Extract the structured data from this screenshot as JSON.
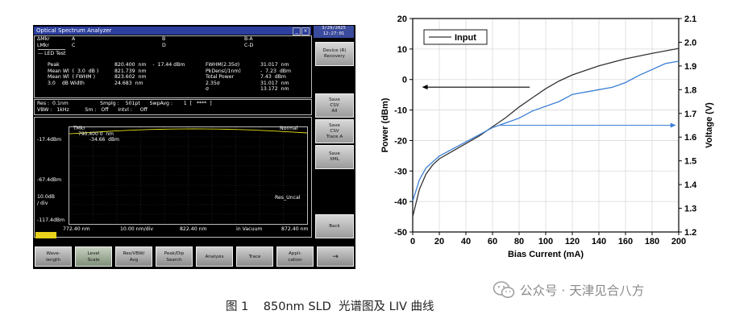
{
  "osa": {
    "title": "Optical Spectrum Analyzer",
    "datetime": "3/29/2025\n12:27:01",
    "marker_rows": [
      {
        "a": "ΔMkr",
        "b": "A",
        "c": "B",
        "d": "B-A"
      },
      {
        "a": "LMkr",
        "b": "C",
        "c": "D",
        "d": "C-D"
      }
    ],
    "led_test_label": "LED Test",
    "left_labels": "Peak\nMean Wl  (  3.0  dB )\nMean Wl  ( FWHM )\n3.0    dB Width",
    "left_values": "820.400  nm    -  17.44 dBm\n821.739  nm\n823.602  nm\n24.683  nm",
    "right_labels": "FWHM(2.35σ)\nPkDens(/1nm)\nTotal Power\n2.35σ\nσ",
    "right_values": "31.017  nm\n-  7.23  dBm\n7.43  dBm\n31.017  nm\n13.172  nm",
    "settings_line1": "Res :  0.1nm                    Smplg :    501pt      SwpAvg :       1  [   ****  ]",
    "settings_line2": "VBW :   1kHz          Sm :   Off      Intvl :     Off",
    "mkr_label": "TMkr",
    "mkr_value1": "790.400 0  nm",
    "mkr_value2": "-34.66  dBm",
    "mode": "Normal",
    "ref_level": "-17.4dBm",
    "level_mid": "-67.4dBm",
    "scale": "10.0dB\n/ div",
    "level_bottom": "-117.4dBm",
    "res_uncal": "Res_Uncal",
    "x_start": "772.40 nm",
    "x_span": "10.00 nm/div",
    "x_center": "822.40 nm",
    "x_medium": "in Vacuum",
    "x_stop": "872.40 nm",
    "softkeys": [
      "Device\n(R) Recovery",
      "Save\nCSV\nAll",
      "Save\nCSV\nTrace A",
      "Save\nXML",
      "Back"
    ],
    "bottom_keys": [
      "Wave-\nlength",
      "Level\nScale",
      "Res/VBW/\nAvg",
      "Peak/Dip\nSearch",
      "Analysis",
      "Trace",
      "Appli-\ncation",
      "→"
    ],
    "trace_color": "#e8e41c",
    "spectrum_dbm": [
      -22.5,
      -21.8,
      -21.0,
      -20.3,
      -19.6,
      -19.0,
      -18.5,
      -18.1,
      -17.8,
      -17.6,
      -17.5,
      -17.4,
      -17.45,
      -17.6,
      -17.8,
      -18.1,
      -18.5,
      -19.0,
      -19.6,
      -20.2,
      -20.9,
      -21.6
    ]
  },
  "chart_data": {
    "type": "line",
    "xlabel": "Bias Current (mA)",
    "ylabel": "Power (dBm)",
    "y2label": "Voltage (V)",
    "xlim": [
      0,
      200
    ],
    "ylim": [
      -50,
      20
    ],
    "y2lim": [
      1.2,
      2.1
    ],
    "x_ticks": [
      0,
      20,
      40,
      60,
      80,
      100,
      120,
      140,
      160,
      180,
      200
    ],
    "y_ticks": [
      20,
      10,
      0,
      -10,
      -20,
      -30,
      -40,
      -50
    ],
    "y2_ticks": [
      2.1,
      2.0,
      1.9,
      1.8,
      1.7,
      1.6,
      1.5,
      1.4,
      1.3,
      1.2
    ],
    "legend": {
      "label": "Input",
      "position": "top-left"
    },
    "series": [
      {
        "axis": "left",
        "color": "#333333",
        "x": [
          0,
          5,
          10,
          15,
          20,
          30,
          40,
          50,
          60,
          70,
          80,
          90,
          100,
          110,
          120,
          140,
          160,
          180,
          200
        ],
        "y": [
          -45,
          -36,
          -31,
          -28,
          -26,
          -23.5,
          -21,
          -18.5,
          -15.5,
          -12.5,
          -9,
          -6,
          -3,
          -0.5,
          1.5,
          4.5,
          6.8,
          8.6,
          10.2
        ]
      },
      {
        "axis": "right",
        "color": "#3a7fd5",
        "x": [
          0,
          5,
          10,
          20,
          30,
          40,
          50,
          60,
          65,
          80,
          90,
          110,
          120,
          140,
          150,
          160,
          170,
          190,
          200
        ],
        "y": [
          1.33,
          1.42,
          1.47,
          1.52,
          1.55,
          1.58,
          1.61,
          1.64,
          1.65,
          1.68,
          1.71,
          1.75,
          1.78,
          1.8,
          1.81,
          1.83,
          1.86,
          1.91,
          1.92
        ]
      }
    ],
    "arrows": [
      {
        "axis": "left",
        "from_x": 88,
        "to_x": 7,
        "y": -2.5,
        "color": "#000000"
      },
      {
        "axis": "right",
        "from_x": 65,
        "to_x": 198,
        "y": 1.65,
        "color": "#3a7fd5"
      }
    ]
  },
  "caption": "图 1    850nm SLD  光谱图及 LIV 曲线",
  "watermark": "公众号 · 天津见合八方"
}
